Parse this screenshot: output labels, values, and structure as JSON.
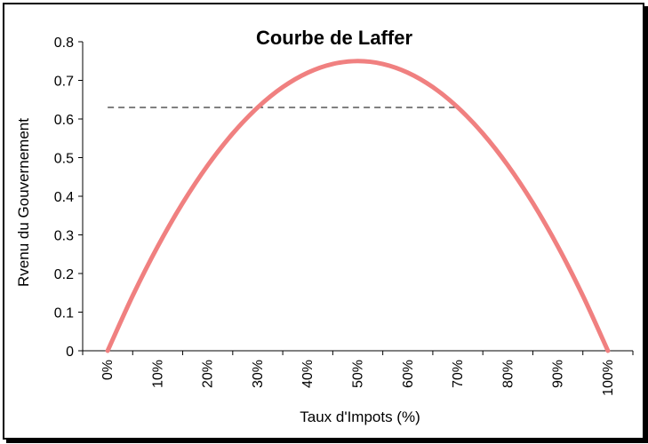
{
  "chart_data": {
    "type": "line",
    "title": "Courbe de Laffer",
    "xlabel": "Taux d'Impots (%)",
    "ylabel": "Rvenu du Gouvernement",
    "categories": [
      "0%",
      "10%",
      "20%",
      "30%",
      "40%",
      "50%",
      "60%",
      "70%",
      "80%",
      "90%",
      "100%"
    ],
    "yticks": [
      "0",
      "0.1",
      "0.2",
      "0.3",
      "0.4",
      "0.5",
      "0.6",
      "0.7",
      "0.8"
    ],
    "ylim": [
      0,
      0.8
    ],
    "xlim": [
      0,
      1
    ],
    "series": [
      {
        "color": "#f08080",
        "x": [
          0,
          0.05,
          0.1,
          0.15,
          0.2,
          0.25,
          0.3,
          0.35,
          0.4,
          0.45,
          0.5,
          0.55,
          0.6,
          0.65,
          0.7,
          0.75,
          0.8,
          0.85,
          0.9,
          0.95,
          1.0
        ],
        "y": [
          0,
          0.1425,
          0.27,
          0.3825,
          0.48,
          0.5625,
          0.63,
          0.6825,
          0.72,
          0.7425,
          0.75,
          0.7425,
          0.72,
          0.6825,
          0.63,
          0.5625,
          0.48,
          0.3825,
          0.27,
          0.1425,
          0
        ]
      }
    ],
    "reference_line": {
      "y": 0.63,
      "x_from": 0.0,
      "x_to": 0.7,
      "style": "dashed"
    },
    "grid": false,
    "legend": "none"
  }
}
